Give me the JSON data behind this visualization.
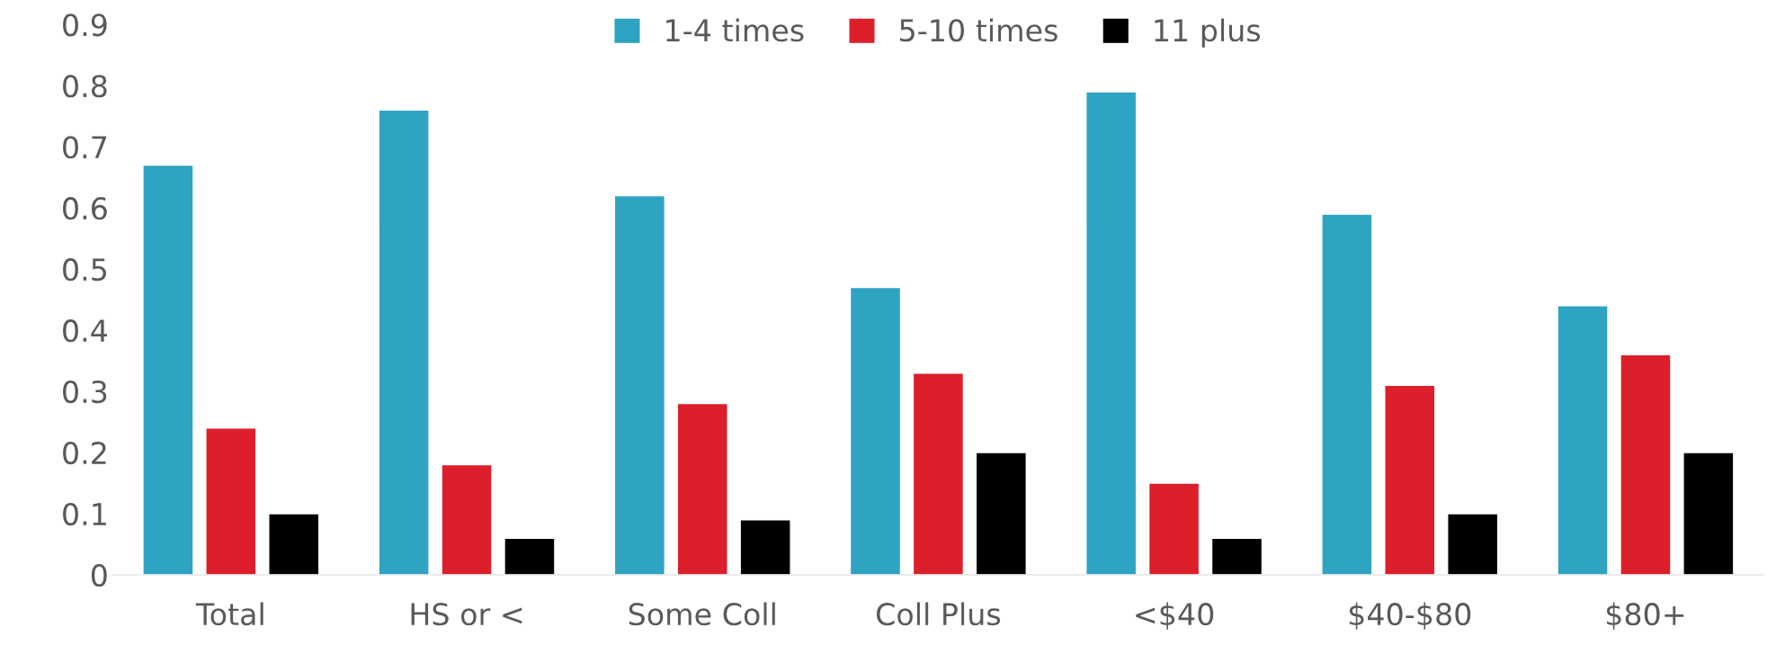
{
  "chart_data": {
    "type": "bar",
    "categories": [
      "Total",
      "HS or <",
      "Some Coll",
      "Coll Plus",
      "<$40",
      "$40-$80",
      "$80+"
    ],
    "series": [
      {
        "name": "1-4 times",
        "color": "#2ea3c2",
        "values": [
          0.67,
          0.76,
          0.62,
          0.47,
          0.79,
          0.59,
          0.44
        ]
      },
      {
        "name": "5-10 times",
        "color": "#dc1f2a",
        "values": [
          0.24,
          0.18,
          0.28,
          0.33,
          0.15,
          0.31,
          0.36
        ]
      },
      {
        "name": "11 plus",
        "color": "#000000",
        "values": [
          0.1,
          0.06,
          0.09,
          0.2,
          0.06,
          0.1,
          0.2
        ]
      }
    ],
    "ylim": [
      0,
      0.9
    ],
    "yticks": [
      {
        "value": 0,
        "label": "0"
      },
      0.1,
      0.2,
      0.3,
      0.4,
      0.5,
      0.6,
      0.7,
      0.8,
      0.9
    ],
    "grid": false,
    "legend": "top"
  }
}
